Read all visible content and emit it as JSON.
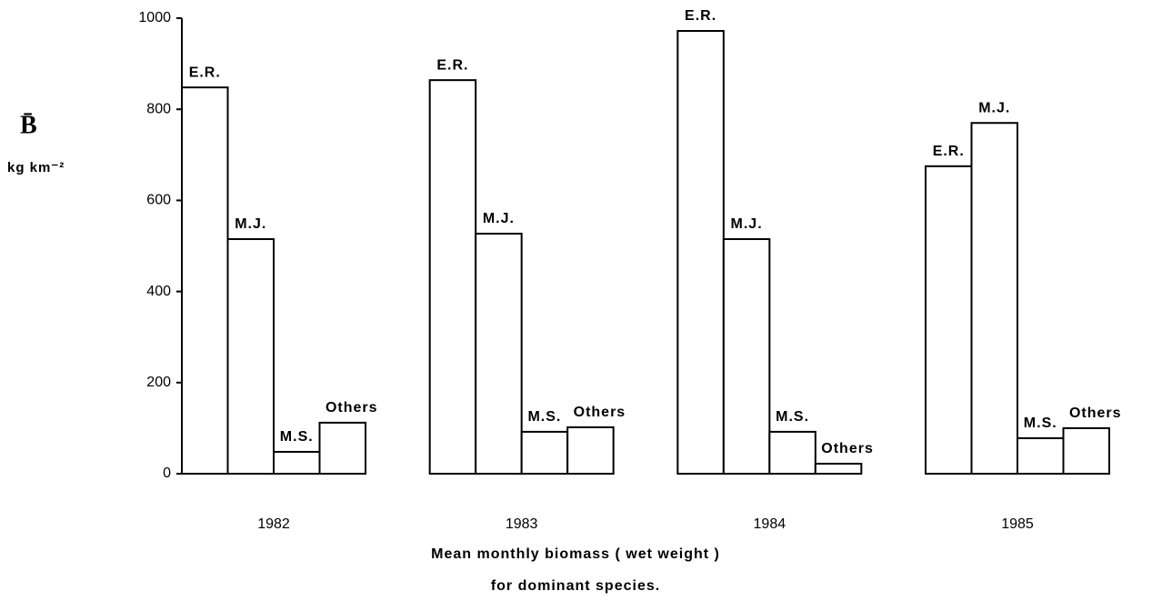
{
  "chart_data": {
    "type": "bar",
    "ylabel": "B̄",
    "yunits": "kg km⁻²",
    "xlabel": [
      "Mean monthly biomass ( wet weight )",
      "for dominant species."
    ],
    "categories": [
      "1982",
      "1983",
      "1984",
      "1985"
    ],
    "series": [
      {
        "name": "E.R.",
        "color": "#ffffff",
        "values": [
          848,
          864,
          972,
          675
        ]
      },
      {
        "name": "M.J.",
        "color": "#ffffff",
        "values": [
          515,
          527,
          515,
          770
        ]
      },
      {
        "name": "M.S.",
        "color": "#ffffff",
        "values": [
          48,
          92,
          92,
          78
        ]
      },
      {
        "name": "Others",
        "color": "#ffffff",
        "values": [
          112,
          102,
          22,
          100
        ]
      }
    ],
    "edgecolor": "#000000",
    "ylim": [
      0,
      1000
    ],
    "yticks": [
      0,
      200,
      400,
      600,
      800,
      1000
    ],
    "grid": false
  }
}
